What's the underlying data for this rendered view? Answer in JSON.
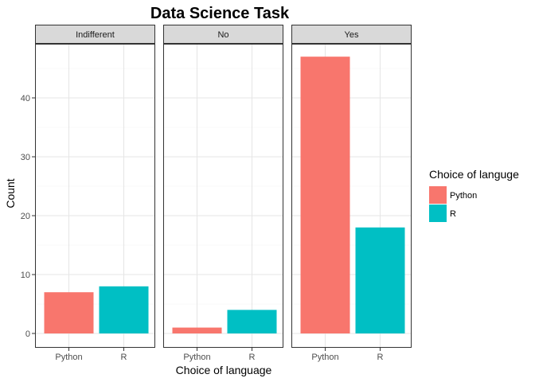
{
  "chart_data": {
    "type": "bar",
    "title": "Data Science Task",
    "xlabel": "Choice of language",
    "ylabel": "Count",
    "legend_title": "Choice of languge",
    "legend_position": "right",
    "categories": [
      "Python",
      "R"
    ],
    "facets": [
      {
        "label": "Indifferent",
        "values": [
          7,
          8
        ]
      },
      {
        "label": "No",
        "values": [
          1,
          4
        ]
      },
      {
        "label": "Yes",
        "values": [
          47,
          18
        ]
      }
    ],
    "series": [
      {
        "name": "Python",
        "color": "#F8766D"
      },
      {
        "name": "R",
        "color": "#00BFC4"
      }
    ],
    "ylim": [
      0,
      49
    ],
    "yticks": [
      "0",
      "10",
      "20",
      "30",
      "40"
    ],
    "grid": true
  }
}
